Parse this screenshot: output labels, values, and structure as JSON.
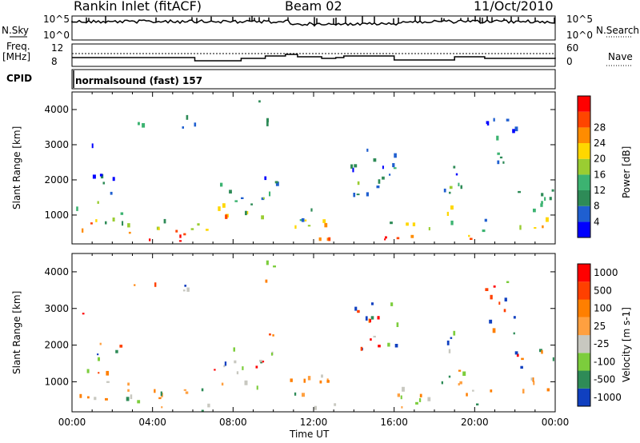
{
  "header": {
    "station": "Rankin Inlet (fitACF)",
    "beam": "Beam 02",
    "date": "11/Oct/2010"
  },
  "panels": {
    "nsky_label": "N.Sky",
    "nsky_ticks": [
      "10^5",
      "10^0"
    ],
    "nsearch_label": "N.Search",
    "freq_label_top": "Freq.",
    "freq_label_unit": "[MHz]",
    "freq_ticks": [
      "12",
      "8"
    ],
    "nave_ticks": [
      "60",
      "0"
    ],
    "nave_label": "Nave",
    "cpid_label": "CPID",
    "cpid_text": "normalsound (fast) 157"
  },
  "colors": {
    "power": [
      "#0000ff",
      "#1f5fd0",
      "#2e8b57",
      "#3cb371",
      "#9acd32",
      "#ffd700",
      "#ff8c00",
      "#ff4500",
      "#ff0000"
    ],
    "velocity": [
      "#1040c0",
      "#2e8b57",
      "#7ccd3c",
      "#c8c8c0",
      "#ffa040",
      "#ff7f00",
      "#ff4000",
      "#ff0000"
    ]
  },
  "chart_data": [
    {
      "type": "heatmap",
      "name": "power",
      "xlabel": "",
      "ylabel": "Slant Range [km]",
      "y_ticks": [
        1000,
        2000,
        3000,
        4000
      ],
      "ylim": [
        180,
        4500
      ],
      "colorbar_label": "Power [dB]",
      "colorbar_ticks": [
        4,
        8,
        12,
        16,
        20,
        24,
        28
      ]
    },
    {
      "type": "heatmap",
      "name": "velocity",
      "xlabel": "Time UT",
      "x_ticks": [
        "00:00",
        "04:00",
        "08:00",
        "12:00",
        "16:00",
        "20:00",
        "00:00"
      ],
      "ylabel": "Slant Range [km]",
      "y_ticks": [
        1000,
        2000,
        3000,
        4000
      ],
      "ylim": [
        180,
        4500
      ],
      "colorbar_label": "Velocity [m s-1]",
      "colorbar_ticks": [
        "1000",
        "500",
        "100",
        "25",
        "-25",
        "-100",
        "-500",
        "-1000"
      ]
    }
  ]
}
